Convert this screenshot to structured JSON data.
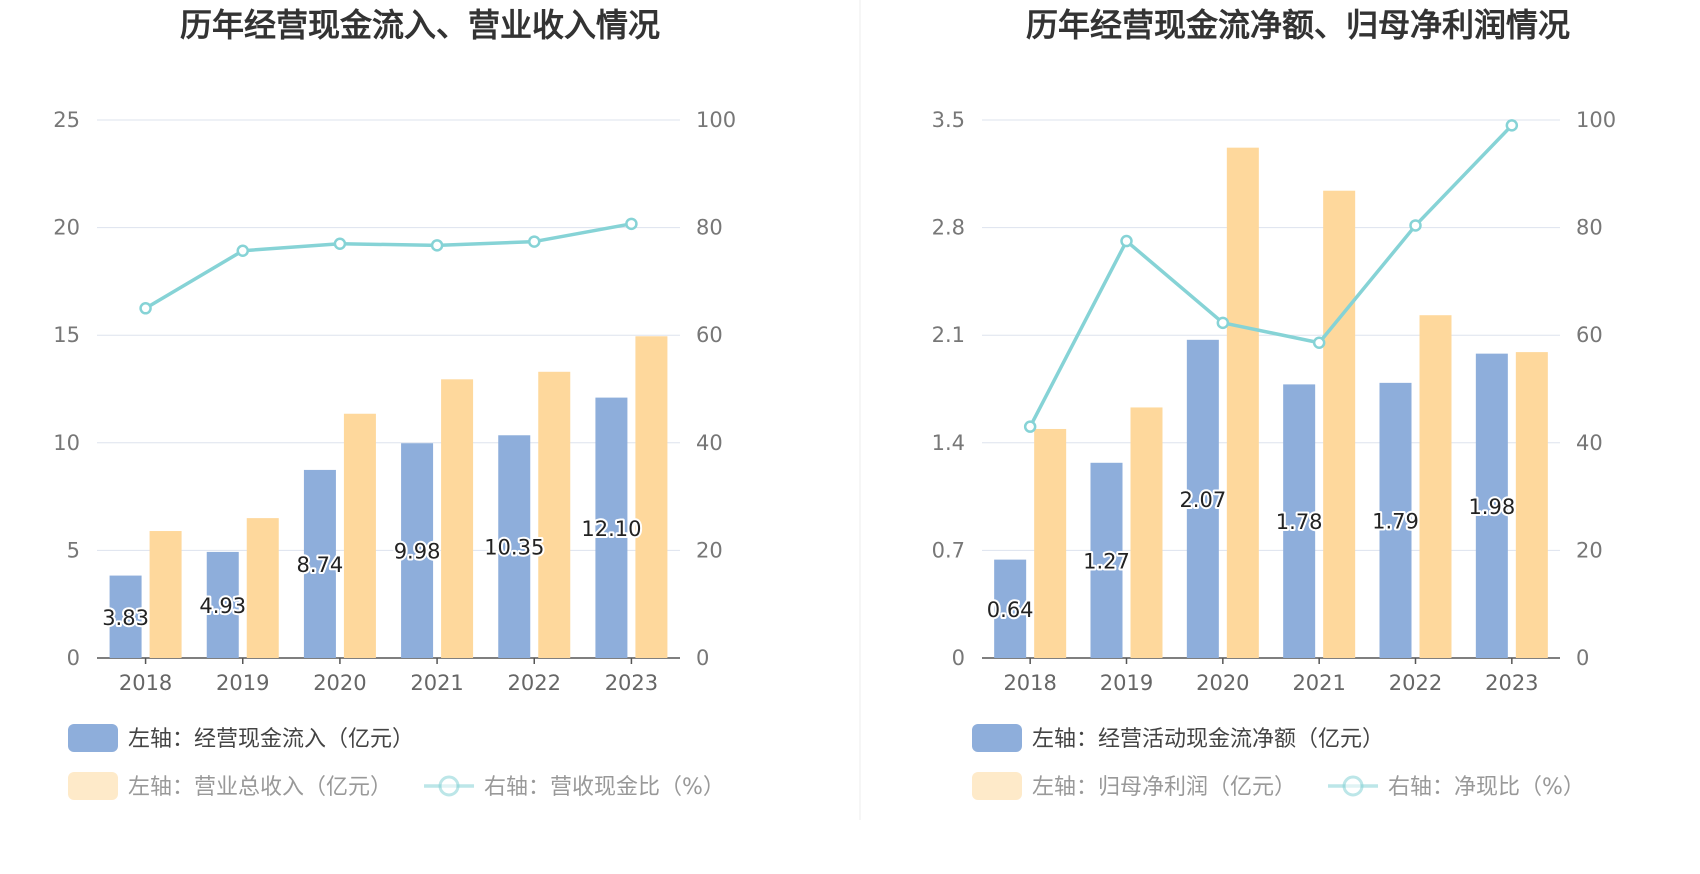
{
  "colors": {
    "bar_blue": "#8eaedb",
    "bar_orange": "#fed89c",
    "line": "#86d3d6",
    "grid": "#dde3ee",
    "axis": "#555555",
    "divider": "#eeeeee"
  },
  "chart_data": [
    {
      "type": "bar",
      "title": "历年经营现金流入、营业收入情况",
      "categories": [
        "2018",
        "2019",
        "2020",
        "2021",
        "2022",
        "2023"
      ],
      "left_axis": {
        "ylim": [
          0,
          25
        ],
        "ticks": [
          "0",
          "5",
          "10",
          "15",
          "20",
          "25"
        ]
      },
      "right_axis": {
        "ylim": [
          0,
          100
        ],
        "ticks": [
          "0",
          "20",
          "40",
          "60",
          "80",
          "100"
        ]
      },
      "series": [
        {
          "name": "左轴：经营现金流入（亿元）",
          "kind": "bar",
          "axis": "left",
          "color": "#8eaedb",
          "values": [
            3.83,
            4.93,
            8.74,
            9.98,
            10.35,
            12.1
          ],
          "labels": [
            "3.83",
            "4.93",
            "8.74",
            "9.98",
            "10.35",
            "12.10"
          ]
        },
        {
          "name": "左轴：营业总收入（亿元）",
          "kind": "bar",
          "axis": "left",
          "color": "#fed89c",
          "values": [
            5.9,
            6.5,
            11.35,
            12.95,
            13.3,
            14.95
          ]
        },
        {
          "name": "右轴：营收现金比（%）",
          "kind": "line",
          "axis": "right",
          "color": "#86d3d6",
          "values": [
            65,
            75.7,
            77,
            76.7,
            77.4,
            80.7
          ]
        }
      ],
      "legend": {
        "rows": [
          [
            {
              "label": "左轴：经营现金流入（亿元）",
              "marker": "bar_blue",
              "faded": false
            }
          ],
          [
            {
              "label": "左轴：营业总收入（亿元）",
              "marker": "bar_orange",
              "faded": true
            },
            {
              "label": "右轴：营收现金比（%）",
              "marker": "line",
              "faded": true
            }
          ]
        ]
      }
    },
    {
      "type": "bar",
      "title": "历年经营现金流净额、归母净利润情况",
      "categories": [
        "2018",
        "2019",
        "2020",
        "2021",
        "2022",
        "2023"
      ],
      "left_axis": {
        "ylim": [
          0,
          3.5
        ],
        "ticks": [
          "0",
          "0.7",
          "1.4",
          "2.1",
          "2.8",
          "3.5"
        ]
      },
      "right_axis": {
        "ylim": [
          0,
          100
        ],
        "ticks": [
          "0",
          "20",
          "40",
          "60",
          "80",
          "100"
        ]
      },
      "series": [
        {
          "name": "左轴：经营活动现金流净额（亿元）",
          "kind": "bar",
          "axis": "left",
          "color": "#8eaedb",
          "values": [
            0.64,
            1.27,
            2.07,
            1.78,
            1.79,
            1.98
          ],
          "labels": [
            "0.64",
            "1.27",
            "2.07",
            "1.78",
            "1.79",
            "1.98"
          ]
        },
        {
          "name": "左轴：归母净利润（亿元）",
          "kind": "bar",
          "axis": "left",
          "color": "#fed89c",
          "values": [
            1.49,
            1.63,
            3.32,
            3.04,
            2.23,
            1.99
          ]
        },
        {
          "name": "右轴：净现比（%）",
          "kind": "line",
          "axis": "right",
          "color": "#86d3d6",
          "values": [
            43,
            77.5,
            62.3,
            58.6,
            80.4,
            99
          ]
        }
      ],
      "legend": {
        "rows": [
          [
            {
              "label": "左轴：经营活动现金流净额（亿元）",
              "marker": "bar_blue",
              "faded": false
            }
          ],
          [
            {
              "label": "左轴：归母净利润（亿元）",
              "marker": "bar_orange",
              "faded": true
            },
            {
              "label": "右轴：净现比（%）",
              "marker": "line",
              "faded": true
            }
          ]
        ]
      }
    }
  ]
}
